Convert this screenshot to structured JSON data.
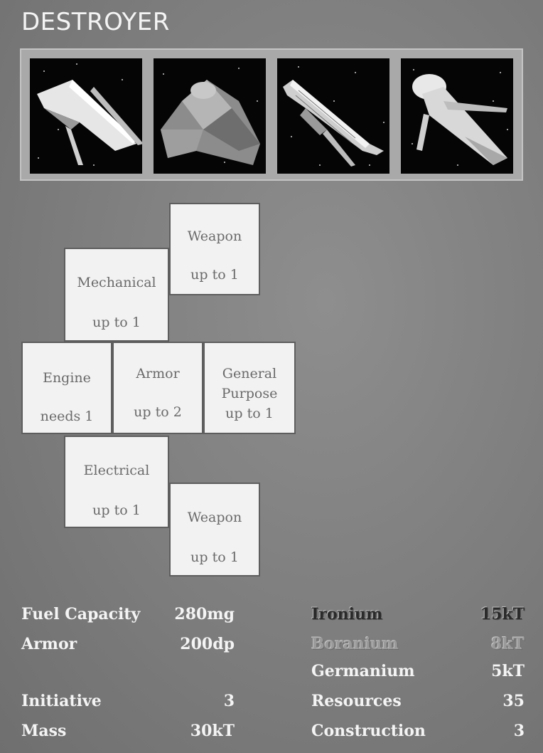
{
  "page": {
    "title": "DESTROYER"
  },
  "images": [
    {
      "icon": "starship-image-1"
    },
    {
      "icon": "starship-image-2"
    },
    {
      "icon": "starship-image-3"
    },
    {
      "icon": "starship-image-4"
    }
  ],
  "slots": {
    "weapon_top": {
      "line1": "Weapon",
      "line2": "up to 1"
    },
    "mechanical": {
      "line1": "Mechanical",
      "line2": "up to 1"
    },
    "engine": {
      "line1": "Engine",
      "line2": "needs 1"
    },
    "armor": {
      "line1": "Armor",
      "line2": "up to 2"
    },
    "general": {
      "line1": "General",
      "line2": "Purpose",
      "line3": "up to 1"
    },
    "electrical": {
      "line1": "Electrical",
      "line2": "up to 1"
    },
    "weapon_bottom": {
      "line1": "Weapon",
      "line2": "up to 1"
    }
  },
  "stats": {
    "fuel_capacity": {
      "label": "Fuel Capacity",
      "value": "280mg"
    },
    "armor": {
      "label": "Armor",
      "value": "200dp"
    },
    "initiative": {
      "label": "Initiative",
      "value": "3"
    },
    "mass": {
      "label": "Mass",
      "value": "30kT"
    }
  },
  "costs": {
    "ironium": {
      "label": "Ironium",
      "value": "15kT"
    },
    "boranium": {
      "label": "Boranium",
      "value": "8kT"
    },
    "germanium": {
      "label": "Germanium",
      "value": "5kT"
    },
    "resources": {
      "label": "Resources",
      "value": "35"
    },
    "construction": {
      "label": "Construction",
      "value": "3"
    }
  },
  "colors": {
    "background": "#7f7f7f",
    "slot_fill": "#f2f2f2",
    "slot_text": "#6a6a6a",
    "stat_text": "#f4f4f4",
    "ironium_text": "#2a2a2a",
    "boranium_text": "#9a9a9a"
  }
}
